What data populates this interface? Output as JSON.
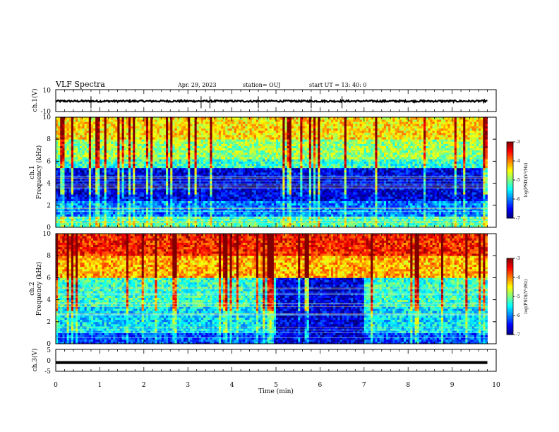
{
  "header": {
    "title": "VLF Spectra",
    "date": "Apr. 29, 2023",
    "station": "station= OUJ",
    "start": "start  UT =   13: 40: 0"
  },
  "chart_data": [
    {
      "type": "line",
      "title": "",
      "ylabel": "ch.1(V)",
      "ylim": [
        -10,
        10
      ],
      "yticks": [
        "10",
        "-10"
      ],
      "x": [
        0,
        1,
        2,
        3,
        4,
        5,
        6,
        7,
        8,
        9,
        9.8
      ],
      "y": [
        0,
        0,
        0,
        0,
        0,
        0,
        0,
        0,
        0,
        0,
        0
      ],
      "note_series": "waveform approx. -0.5 V baseline with spikes near 0.8, 3.3, 4.6, 5.8 min"
    },
    {
      "type": "heatmap",
      "title": "",
      "ylabel": "Frequency (kHz)",
      "ylabel2": "ch.1",
      "ylim": [
        0,
        10
      ],
      "yticks": [
        "0",
        "2",
        "4",
        "6",
        "8",
        "10"
      ],
      "xlim": [
        0,
        10
      ],
      "colorbar": {
        "label": "log(PSD)(V²/Hz)",
        "ticks": [
          "-3",
          "-4",
          "-5",
          "-6",
          "-7"
        ],
        "range": [
          -7,
          -3
        ]
      },
      "bands": [
        {
          "f_from": 0,
          "f_to": 1,
          "level": -5.2
        },
        {
          "f_from": 1,
          "f_to": 2.5,
          "level": -6.0
        },
        {
          "f_from": 2.5,
          "f_to": 5.5,
          "level": -6.6
        },
        {
          "f_from": 5.5,
          "f_to": 6.2,
          "level": -5.3
        },
        {
          "f_from": 6.2,
          "f_to": 8.0,
          "level": -4.9
        },
        {
          "f_from": 8.0,
          "f_to": 10,
          "level": -4.4
        }
      ]
    },
    {
      "type": "heatmap",
      "title": "",
      "ylabel": "Frequency (kHz)",
      "ylabel2": "ch.2",
      "ylim": [
        0,
        10
      ],
      "yticks": [
        "0",
        "2",
        "4",
        "6",
        "8",
        "10"
      ],
      "xlim": [
        0,
        10
      ],
      "colorbar": {
        "label": "log(PSD)(V²/Hz)",
        "ticks": [
          "-3",
          "-4",
          "-5",
          "-6",
          "-7"
        ],
        "range": [
          -7,
          -3
        ]
      },
      "bands": [
        {
          "f_from": 0,
          "f_to": 1,
          "level": -6.2
        },
        {
          "f_from": 1,
          "f_to": 3.5,
          "level": -5.6
        },
        {
          "f_from": 3.5,
          "f_to": 6.0,
          "level": -5.3
        },
        {
          "f_from": 6.0,
          "f_to": 8.0,
          "level": -4.2
        },
        {
          "f_from": 8.0,
          "f_to": 10,
          "level": -3.6
        }
      ],
      "quiet_interval": {
        "t_from": 5.0,
        "t_to": 7.0,
        "f_from": 0,
        "f_to": 6.0,
        "level": -6.6
      }
    },
    {
      "type": "line",
      "title": "",
      "ylabel": "ch.3(V)",
      "ylim": [
        -5,
        5
      ],
      "yticks": [
        "5",
        "0",
        "-5"
      ],
      "x": [
        0,
        9.8
      ],
      "y": [
        -1,
        -1
      ]
    }
  ],
  "xaxis": {
    "label": "Time (min)",
    "ticks": [
      "0",
      "1",
      "2",
      "3",
      "4",
      "5",
      "6",
      "7",
      "8",
      "9",
      "10"
    ],
    "xlim": [
      0,
      10
    ]
  }
}
